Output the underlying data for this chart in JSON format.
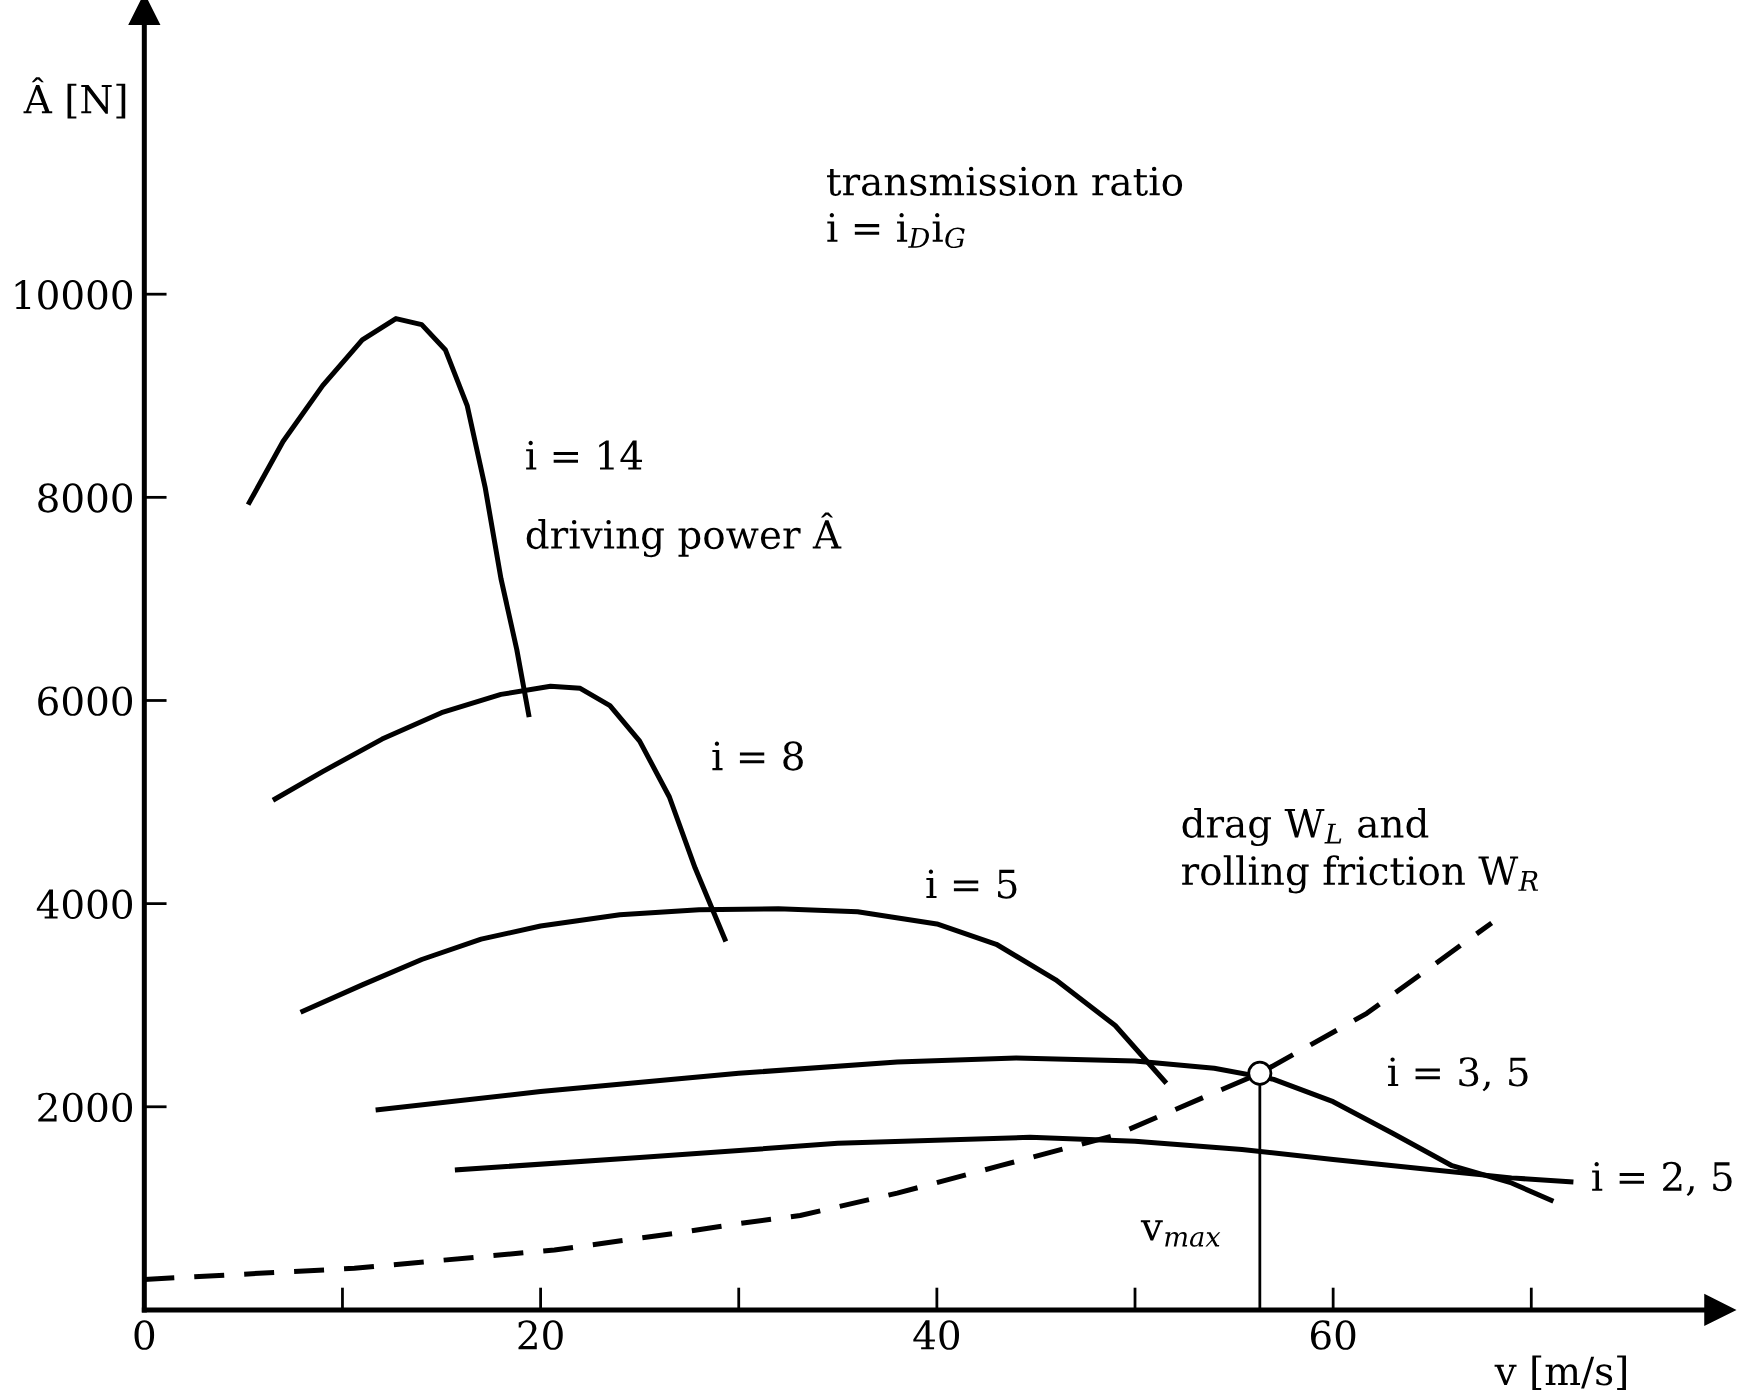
{
  "chart_data": {
    "type": "line",
    "xlabel": "v [m/s]",
    "ylabel": "Â [N]",
    "xlim": [
      0,
      79.5
    ],
    "ylim": [
      0,
      12800
    ],
    "xticks": [
      0,
      {
        "value": 10,
        "label": null
      },
      20,
      {
        "value": 30,
        "label": null
      },
      40,
      {
        "value": 50,
        "label": null
      },
      60,
      {
        "value": 70,
        "label": null
      }
    ],
    "yticks": [
      2000,
      4000,
      6000,
      8000,
      10000
    ],
    "grid": false,
    "legend": false,
    "marker": "none",
    "line_style": "solid",
    "series": [
      {
        "name": "i = 14",
        "color": "#000000",
        "x": [
          5.3,
          7,
          9,
          11,
          12.7,
          14,
          15.2,
          16.3,
          17.2,
          18,
          18.8,
          19.4
        ],
        "values": [
          7950,
          8550,
          9100,
          9550,
          9760,
          9700,
          9450,
          8900,
          8100,
          7200,
          6500,
          5860
        ]
      },
      {
        "name": "i = 8",
        "color": "#000000",
        "x": [
          6.6,
          9,
          12,
          15,
          18,
          20.5,
          22,
          23.5,
          25,
          26.5,
          27.8,
          29.3
        ],
        "values": [
          5030,
          5300,
          5620,
          5880,
          6060,
          6140,
          6120,
          5950,
          5600,
          5050,
          4350,
          3650
        ]
      },
      {
        "name": "i = 5",
        "color": "#000000",
        "x": [
          8,
          11,
          14,
          17,
          20,
          24,
          28,
          32,
          36,
          40,
          43,
          46,
          49,
          51.5
        ],
        "values": [
          2940,
          3200,
          3450,
          3650,
          3780,
          3890,
          3940,
          3950,
          3920,
          3800,
          3600,
          3250,
          2800,
          2250
        ]
      },
      {
        "name": "i = 3, 5",
        "color": "#000000",
        "x": [
          11.8,
          20,
          30,
          38,
          44,
          50,
          54,
          57,
          60,
          63,
          66,
          69,
          71
        ],
        "values": [
          1970,
          2150,
          2330,
          2440,
          2480,
          2450,
          2380,
          2270,
          2050,
          1740,
          1420,
          1250,
          1080
        ]
      },
      {
        "name": "i = 2, 5",
        "color": "#000000",
        "x": [
          15.8,
          25,
          35,
          44.7,
          50,
          55.4,
          60,
          65,
          69,
          72
        ],
        "values": [
          1380,
          1500,
          1640,
          1700,
          1660,
          1580,
          1480,
          1380,
          1300,
          1260
        ]
      },
      {
        "name": "drag W$_{L}$ and\nrolling friction W$_{R}$",
        "color": "#000000",
        "line_style": "dashed",
        "x": [
          0,
          10.6,
          20.7,
          27,
          30,
          33.1,
          38,
          43.2,
          49,
          56.3,
          61.7,
          68
        ],
        "values": [
          300,
          410,
          590,
          760,
          850,
          930,
          1150,
          1420,
          1720,
          2330,
          2920,
          3810
        ]
      },
      {
        "type": "lollipop",
        "color": "#000000",
        "marker": "circle",
        "x": [
          56.3
        ],
        "values": [
          2330
        ]
      }
    ],
    "annotations": [
      "transmission ratio\ni = i$_{D}$i$_{G}$",
      "driving power Â",
      "v$_{max}$"
    ]
  }
}
